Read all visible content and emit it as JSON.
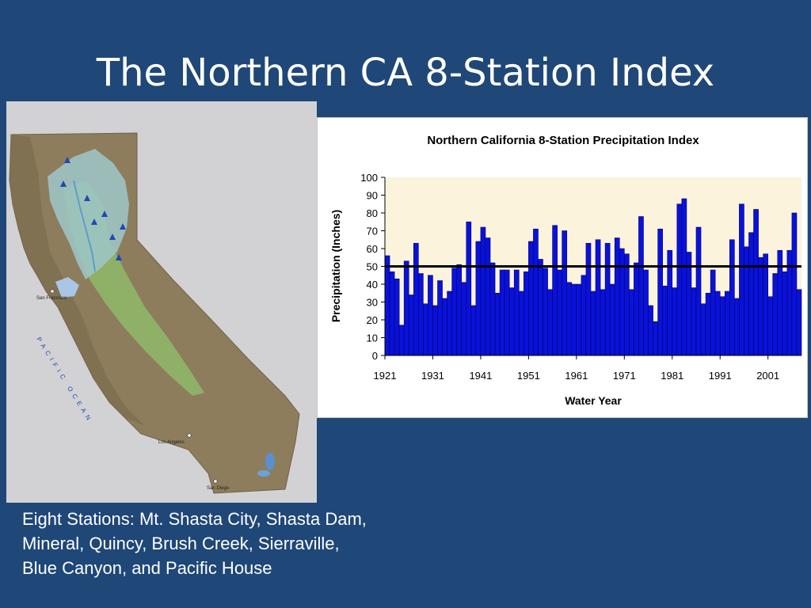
{
  "slide": {
    "title": "The Northern CA 8-Station Index",
    "caption_lines": [
      "Eight Stations: Mt. Shasta City, Shasta Dam,",
      "Mineral, Quincy, Brush Creek, Sierraville,",
      "Blue Canyon, and Pacific House"
    ]
  },
  "map": {
    "labels": {
      "san_francisco": "San Francisco",
      "los_angeles": "Los Angeles",
      "san_diego": "San Diego",
      "ocean": "PACIFIC OCEAN"
    },
    "colors": {
      "background": "#d2d2d4",
      "terrain": "#8d7d5c",
      "valley": "#8fb067",
      "basin": "#9fc7c9",
      "station": "#1f47b8"
    },
    "station_marker": "triangle-icon"
  },
  "chart_data": {
    "type": "bar",
    "title": "Northern California 8-Station Precipitation Index",
    "xlabel": "Water Year",
    "ylabel": "Precipitation (Inches)",
    "ylim": [
      0,
      100
    ],
    "yticks": [
      0,
      10,
      20,
      30,
      40,
      50,
      60,
      70,
      80,
      90,
      100
    ],
    "xticks": [
      1921,
      1931,
      1941,
      1951,
      1961,
      1971,
      1981,
      1991,
      2001
    ],
    "average_line": 50,
    "grid": false,
    "legend": "none",
    "colors": {
      "bar": "#0a12d8",
      "bar_edge": "#00006e",
      "plot_bg": "#fbf3dc",
      "average_line": "#000000"
    },
    "x": [
      1921,
      1922,
      1923,
      1924,
      1925,
      1926,
      1927,
      1928,
      1929,
      1930,
      1931,
      1932,
      1933,
      1934,
      1935,
      1936,
      1937,
      1938,
      1939,
      1940,
      1941,
      1942,
      1943,
      1944,
      1945,
      1946,
      1947,
      1948,
      1949,
      1950,
      1951,
      1952,
      1953,
      1954,
      1955,
      1956,
      1957,
      1958,
      1959,
      1960,
      1961,
      1962,
      1963,
      1964,
      1965,
      1966,
      1967,
      1968,
      1969,
      1970,
      1971,
      1972,
      1973,
      1974,
      1975,
      1976,
      1977,
      1978,
      1979,
      1980,
      1981,
      1982,
      1983,
      1984,
      1985,
      1986,
      1987,
      1988,
      1989,
      1990,
      1991,
      1992,
      1993,
      1994,
      1995,
      1996,
      1997,
      1998,
      1999,
      2000,
      2001,
      2002,
      2003,
      2004,
      2005,
      2006,
      2007
    ],
    "values": [
      56,
      47,
      43,
      17,
      53,
      34,
      63,
      46,
      29,
      45,
      28,
      42,
      32,
      36,
      49,
      51,
      41,
      75,
      28,
      64,
      72,
      66,
      52,
      35,
      48,
      48,
      38,
      48,
      36,
      47,
      64,
      71,
      54,
      49,
      37,
      73,
      48,
      70,
      41,
      40,
      40,
      45,
      63,
      36,
      65,
      37,
      63,
      40,
      66,
      60,
      57,
      37,
      52,
      78,
      48,
      28,
      19,
      71,
      39,
      59,
      38,
      85,
      88,
      58,
      38,
      72,
      29,
      35,
      48,
      36,
      33,
      36,
      65,
      32,
      85,
      61,
      69,
      82,
      55,
      57,
      33,
      46,
      59,
      47,
      59,
      80,
      37
    ]
  }
}
